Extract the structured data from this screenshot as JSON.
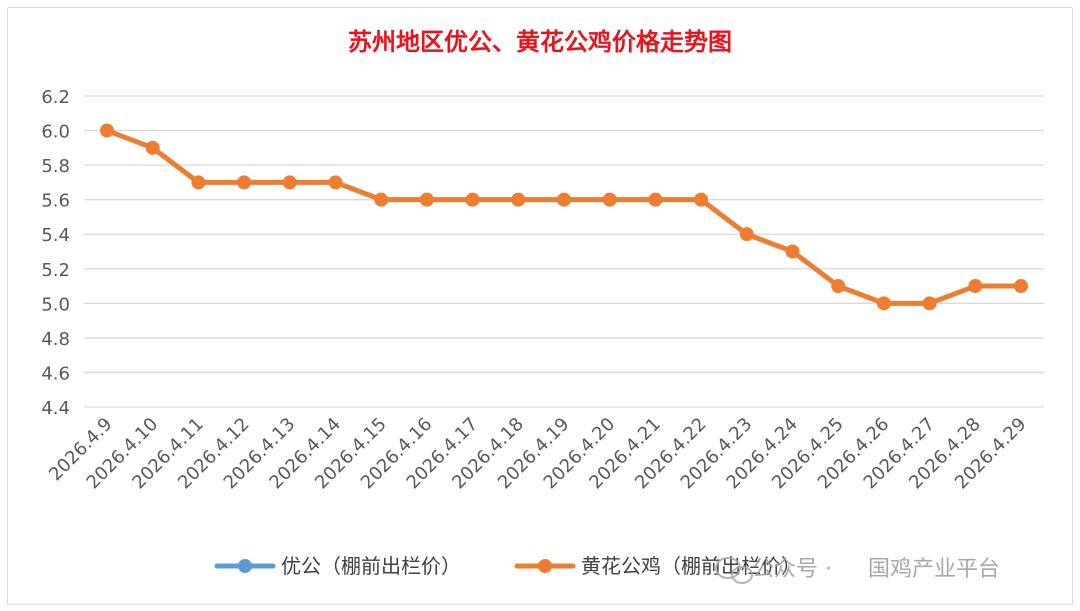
{
  "chart_data": {
    "type": "line",
    "title": "苏州地区优公、黄花公鸡价格走势图",
    "categories": [
      "2026.4.9",
      "2026.4.10",
      "2026.4.11",
      "2026.4.12",
      "2026.4.13",
      "2026.4.14",
      "2026.4.15",
      "2026.4.16",
      "2026.4.17",
      "2026.4.18",
      "2026.4.19",
      "2026.4.20",
      "2026.4.21",
      "2026.4.22",
      "2026.4.23",
      "2026.4.24",
      "2026.4.25",
      "2026.4.26",
      "2026.4.27",
      "2026.4.28",
      "2026.4.29"
    ],
    "yticks": [
      "4.4",
      "4.6",
      "4.8",
      "5.0",
      "5.2",
      "5.4",
      "5.6",
      "5.8",
      "6.0",
      "6.2"
    ],
    "ylim": [
      4.4,
      6.2
    ],
    "grid": true,
    "legend_position": "bottom",
    "series": [
      {
        "name": "优公（棚前出栏价）",
        "color": "#5b9bd5",
        "values": [
          null,
          null,
          null,
          null,
          null,
          null,
          null,
          null,
          null,
          null,
          null,
          null,
          null,
          null,
          null,
          null,
          null,
          null,
          null,
          null,
          null
        ]
      },
      {
        "name": "黄花公鸡（棚前出栏价）",
        "color": "#ed7d31",
        "values": [
          6.0,
          5.9,
          5.7,
          5.7,
          5.7,
          5.7,
          5.6,
          5.6,
          5.6,
          5.6,
          5.6,
          5.6,
          5.6,
          5.6,
          5.4,
          5.3,
          5.1,
          5.0,
          5.0,
          5.1,
          5.1
        ]
      }
    ]
  },
  "watermark": {
    "icon": "wechat-icon",
    "text_1": "公众号 ·",
    "text_2": "国鸡产业平台"
  }
}
